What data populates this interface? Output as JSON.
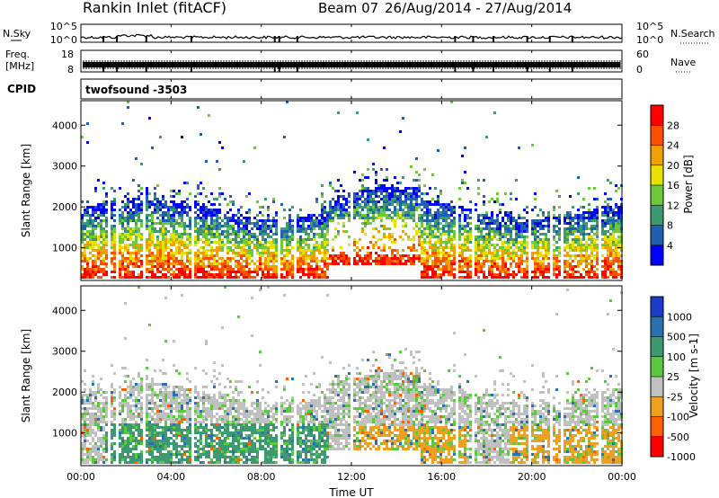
{
  "header": {
    "station": "Rankin Inlet (fitACF)",
    "beam": "Beam 07",
    "dates": "26/Aug/2014 - 27/Aug/2014"
  },
  "noise_panel": {
    "left_label": "N.Sky",
    "right_label": "N.Search",
    "left_ticks": [
      "10^5",
      "10^0"
    ],
    "right_ticks": [
      "10^5",
      "10^0"
    ]
  },
  "freq_panel": {
    "left_label_line1": "Freq.",
    "left_label_line2": "[MHz]",
    "right_label": "Nave",
    "left_ticks": [
      "18",
      "8"
    ],
    "right_ticks": [
      "60",
      "0"
    ]
  },
  "cpid": {
    "label": "CPID",
    "program": "twofsound",
    "id": "-3503"
  },
  "time_axis": {
    "label": "Time UT",
    "ticks": [
      "00:00",
      "04:00",
      "08:00",
      "12:00",
      "16:00",
      "20:00",
      "00:00"
    ]
  },
  "chart_data": [
    {
      "type": "heatmap",
      "panel": "power",
      "ylabel": "Slant Range [km]",
      "yticks": [
        1000,
        2000,
        3000,
        4000
      ],
      "ylim": [
        200,
        4600
      ],
      "xlim": [
        0,
        24
      ],
      "colorbar_label": "Power [dB]",
      "colorbar_ticks": [
        "4",
        "8",
        "12",
        "16",
        "20",
        "24",
        "28"
      ],
      "colors": [
        "#0000ff",
        "#2060b0",
        "#3d9a70",
        "#6ec838",
        "#e8e000",
        "#f0a000",
        "#ff5000",
        "#ff0000"
      ]
    },
    {
      "type": "heatmap",
      "panel": "velocity",
      "ylabel": "Slant Range [km]",
      "yticks": [
        1000,
        2000,
        3000,
        4000
      ],
      "ylim": [
        200,
        4600
      ],
      "xlim": [
        0,
        24
      ],
      "colorbar_label": "Velocity [m s-1]",
      "colorbar_ticks": [
        "1000",
        "500",
        "100",
        "25",
        "-25",
        "-100",
        "-500",
        "-1000"
      ],
      "colors": [
        "#1a3cc8",
        "#2b70b0",
        "#3d9a70",
        "#5cc840",
        "#c0c0c0",
        "#f0a020",
        "#ff6000",
        "#ff0000"
      ]
    }
  ]
}
